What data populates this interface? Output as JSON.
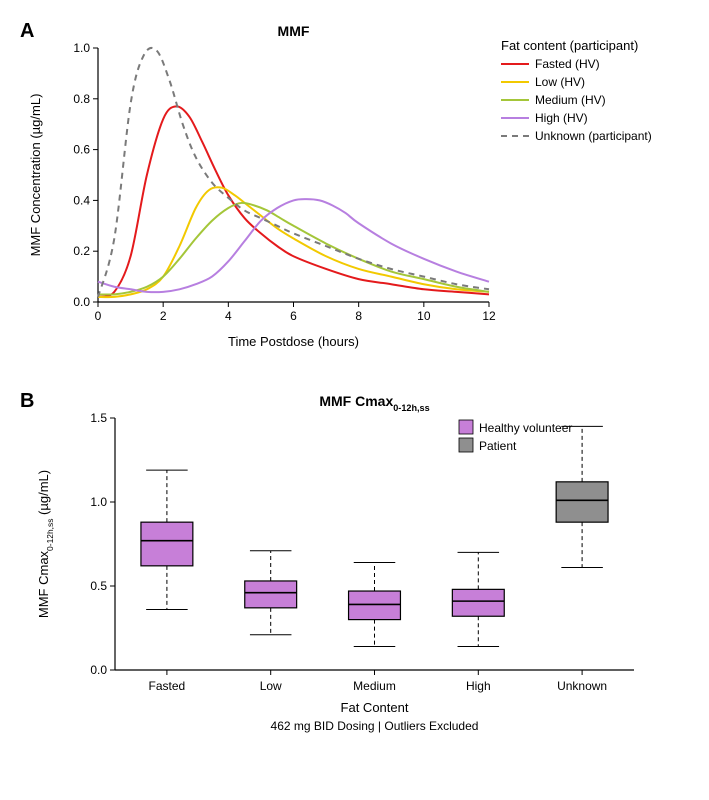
{
  "panelA": {
    "label": "A",
    "title": "MMF",
    "xlabel": "Time Postdose (hours)",
    "ylabel": "MMF Concentration (µg/mL)",
    "xlim": [
      0,
      12
    ],
    "ylim": [
      0,
      1.0
    ],
    "xticks": [
      0,
      2,
      4,
      6,
      8,
      10,
      12
    ],
    "yticks": [
      0.0,
      0.2,
      0.4,
      0.6,
      0.8,
      1.0
    ],
    "legend_title": "Fat content (participant)",
    "title_fontsize": 14,
    "label_fontsize": 13,
    "tick_fontsize": 12,
    "legend_fontsize": 12,
    "background_color": "#ffffff",
    "axis_color": "#000000",
    "line_width": 2,
    "series": [
      {
        "name": "Fasted (HV)",
        "color": "#e41a1c",
        "dash": "none",
        "x": [
          0,
          0.5,
          1.0,
          1.5,
          2.0,
          2.4,
          2.8,
          3.2,
          3.6,
          4.0,
          4.5,
          5.0,
          5.5,
          6.0,
          7.0,
          8.0,
          9.0,
          10.0,
          11.0,
          12.0
        ],
        "y": [
          0.02,
          0.04,
          0.18,
          0.5,
          0.72,
          0.77,
          0.73,
          0.63,
          0.52,
          0.42,
          0.33,
          0.27,
          0.22,
          0.18,
          0.13,
          0.09,
          0.07,
          0.05,
          0.04,
          0.03
        ]
      },
      {
        "name": "Low (HV)",
        "color": "#f2c900",
        "dash": "none",
        "x": [
          0,
          0.5,
          1.0,
          1.5,
          2.0,
          2.5,
          3.0,
          3.4,
          3.8,
          4.2,
          4.6,
          5.0,
          5.5,
          6.0,
          7.0,
          8.0,
          9.0,
          10.0,
          11.0,
          12.0
        ],
        "y": [
          0.02,
          0.02,
          0.03,
          0.05,
          0.1,
          0.22,
          0.37,
          0.44,
          0.45,
          0.42,
          0.38,
          0.34,
          0.29,
          0.25,
          0.18,
          0.13,
          0.1,
          0.07,
          0.05,
          0.04
        ]
      },
      {
        "name": "Medium (HV)",
        "color": "#a4c639",
        "dash": "none",
        "x": [
          0,
          0.5,
          1.0,
          1.5,
          2.0,
          2.5,
          3.0,
          3.5,
          4.0,
          4.4,
          4.8,
          5.2,
          5.6,
          6.0,
          7.0,
          8.0,
          9.0,
          10.0,
          11.0,
          12.0
        ],
        "y": [
          0.03,
          0.03,
          0.04,
          0.06,
          0.1,
          0.17,
          0.25,
          0.32,
          0.37,
          0.39,
          0.38,
          0.36,
          0.33,
          0.3,
          0.23,
          0.17,
          0.12,
          0.09,
          0.06,
          0.04
        ]
      },
      {
        "name": "High (HV)",
        "color": "#b77fe0",
        "dash": "none",
        "x": [
          0,
          0.5,
          1.0,
          1.5,
          2.0,
          2.5,
          3.0,
          3.5,
          4.0,
          4.5,
          5.0,
          5.5,
          6.0,
          6.4,
          6.8,
          7.2,
          7.6,
          8.0,
          9.0,
          10.0,
          11.0,
          12.0
        ],
        "y": [
          0.08,
          0.06,
          0.05,
          0.04,
          0.04,
          0.05,
          0.07,
          0.1,
          0.16,
          0.24,
          0.32,
          0.37,
          0.4,
          0.405,
          0.4,
          0.38,
          0.35,
          0.31,
          0.23,
          0.17,
          0.12,
          0.08
        ]
      },
      {
        "name": "Unknown (participant)",
        "color": "#7a7a7a",
        "dash": "6,5",
        "x": [
          0,
          0.5,
          1.0,
          1.4,
          1.8,
          2.2,
          2.6,
          3.0,
          3.5,
          4.0,
          4.5,
          5.0,
          5.5,
          6.0,
          7.0,
          8.0,
          9.0,
          10.0,
          11.0,
          12.0
        ],
        "y": [
          0.02,
          0.25,
          0.78,
          0.97,
          0.99,
          0.87,
          0.7,
          0.57,
          0.47,
          0.41,
          0.36,
          0.33,
          0.3,
          0.27,
          0.22,
          0.17,
          0.13,
          0.1,
          0.07,
          0.05
        ]
      }
    ]
  },
  "panelB": {
    "label": "B",
    "title": "MMF Cmax",
    "title_sub": "0-12h,ss",
    "xlabel": "Fat Content",
    "xlabel2": "462 mg BID Dosing | Outliers Excluded",
    "ylabel_main": "MMF Cmax",
    "ylabel_sub": "0-12h,ss",
    "ylabel_unit": " (µg/mL)",
    "ylim": [
      0,
      1.5
    ],
    "yticks": [
      0.0,
      0.5,
      1.0,
      1.5
    ],
    "categories": [
      "Fasted",
      "Low",
      "Medium",
      "High",
      "Unknown"
    ],
    "title_fontsize": 14,
    "label_fontsize": 13,
    "tick_fontsize": 12,
    "legend_fontsize": 12,
    "background_color": "#ffffff",
    "axis_color": "#000000",
    "box_line_width": 1.2,
    "whisker_dash": "4,3",
    "legend": [
      {
        "name": "Healthy volunteer",
        "color": "#c77fd8"
      },
      {
        "name": "Patient",
        "color": "#8f8f8f"
      }
    ],
    "boxes": [
      {
        "category": "Fasted",
        "color": "#c77fd8",
        "min": 0.36,
        "q1": 0.62,
        "median": 0.77,
        "q3": 0.88,
        "max": 1.19
      },
      {
        "category": "Low",
        "color": "#c77fd8",
        "min": 0.21,
        "q1": 0.37,
        "median": 0.46,
        "q3": 0.53,
        "max": 0.71
      },
      {
        "category": "Medium",
        "color": "#c77fd8",
        "min": 0.14,
        "q1": 0.3,
        "median": 0.39,
        "q3": 0.47,
        "max": 0.64
      },
      {
        "category": "High",
        "color": "#c77fd8",
        "min": 0.14,
        "q1": 0.32,
        "median": 0.41,
        "q3": 0.48,
        "max": 0.7
      },
      {
        "category": "Unknown",
        "color": "#8f8f8f",
        "min": 0.61,
        "q1": 0.88,
        "median": 1.01,
        "q3": 1.12,
        "max": 1.45
      }
    ]
  }
}
